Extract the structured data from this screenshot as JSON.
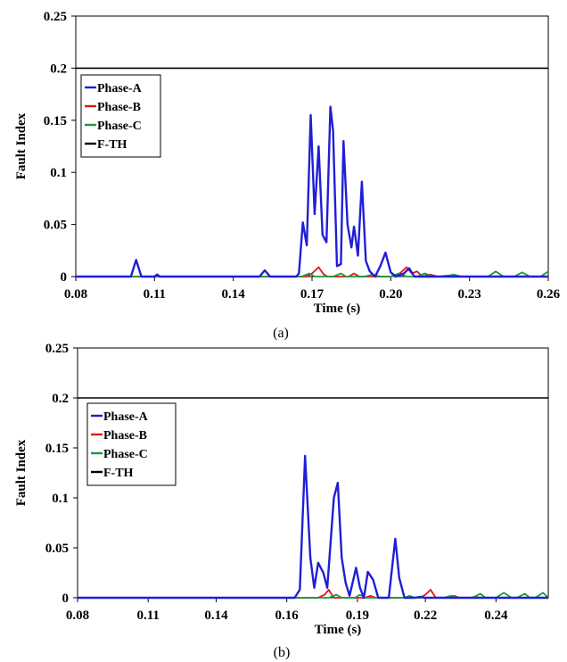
{
  "chart_data": [
    {
      "type": "line",
      "caption": "(a)",
      "xlabel": "Time (s)",
      "ylabel": "Fault Index",
      "xlim": [
        0.08,
        0.26
      ],
      "ylim": [
        0,
        0.25
      ],
      "xticks": [
        "0.08",
        "0.11",
        "0.14",
        "0.17",
        "0.20",
        "0.23",
        "0.26"
      ],
      "xtick_values": [
        0.08,
        0.11,
        0.14,
        0.17,
        0.2,
        0.23,
        0.26
      ],
      "yticks": [
        "0",
        "0.05",
        "0.1",
        "0.15",
        "0.2",
        "0.25"
      ],
      "ytick_values": [
        0,
        0.05,
        0.1,
        0.15,
        0.2,
        0.25
      ],
      "legend_position": "top-left",
      "series": [
        {
          "name": "Phase-A",
          "color": "#1f1fd6",
          "points": [
            [
              0.08,
              0
            ],
            [
              0.101,
              0
            ],
            [
              0.103,
              0.016
            ],
            [
              0.105,
              0
            ],
            [
              0.11,
              0
            ],
            [
              0.111,
              0.002
            ],
            [
              0.112,
              0
            ],
            [
              0.15,
              0
            ],
            [
              0.152,
              0.006
            ],
            [
              0.154,
              0
            ],
            [
              0.164,
              0
            ],
            [
              0.165,
              0.003
            ],
            [
              0.1665,
              0.052
            ],
            [
              0.168,
              0.03
            ],
            [
              0.1695,
              0.155
            ],
            [
              0.171,
              0.06
            ],
            [
              0.1725,
              0.125
            ],
            [
              0.174,
              0.04
            ],
            [
              0.1755,
              0.033
            ],
            [
              0.177,
              0.163
            ],
            [
              0.178,
              0.14
            ],
            [
              0.1795,
              0.01
            ],
            [
              0.181,
              0.012
            ],
            [
              0.182,
              0.13
            ],
            [
              0.1835,
              0.05
            ],
            [
              0.185,
              0.028
            ],
            [
              0.186,
              0.048
            ],
            [
              0.1875,
              0.02
            ],
            [
              0.189,
              0.091
            ],
            [
              0.1905,
              0.015
            ],
            [
              0.192,
              0.005
            ],
            [
              0.194,
              0
            ],
            [
              0.196,
              0.01
            ],
            [
              0.198,
              0.023
            ],
            [
              0.2,
              0.004
            ],
            [
              0.202,
              0
            ],
            [
              0.205,
              0.003
            ],
            [
              0.207,
              0.008
            ],
            [
              0.209,
              0
            ],
            [
              0.26,
              0
            ]
          ]
        },
        {
          "name": "Phase-B",
          "color": "#e01515",
          "points": [
            [
              0.08,
              0
            ],
            [
              0.168,
              0
            ],
            [
              0.17,
              0.003
            ],
            [
              0.1725,
              0.009
            ],
            [
              0.1745,
              0.002
            ],
            [
              0.176,
              0
            ],
            [
              0.184,
              0
            ],
            [
              0.186,
              0.003
            ],
            [
              0.188,
              0
            ],
            [
              0.2,
              0
            ],
            [
              0.203,
              0.002
            ],
            [
              0.206,
              0.009
            ],
            [
              0.208,
              0.003
            ],
            [
              0.21,
              0.005
            ],
            [
              0.212,
              0
            ],
            [
              0.215,
              0.002
            ],
            [
              0.218,
              0
            ],
            [
              0.222,
              0.001
            ],
            [
              0.225,
              0
            ],
            [
              0.26,
              0
            ]
          ]
        },
        {
          "name": "Phase-C",
          "color": "#1a9a3a",
          "points": [
            [
              0.08,
              0
            ],
            [
              0.166,
              0
            ],
            [
              0.169,
              0.003
            ],
            [
              0.171,
              0
            ],
            [
              0.178,
              0
            ],
            [
              0.181,
              0.003
            ],
            [
              0.183,
              0
            ],
            [
              0.19,
              0
            ],
            [
              0.193,
              0.002
            ],
            [
              0.196,
              0
            ],
            [
              0.2,
              0
            ],
            [
              0.203,
              0.003
            ],
            [
              0.206,
              0
            ],
            [
              0.21,
              0
            ],
            [
              0.213,
              0.003
            ],
            [
              0.216,
              0
            ],
            [
              0.22,
              0
            ],
            [
              0.224,
              0.002
            ],
            [
              0.227,
              0
            ],
            [
              0.237,
              0
            ],
            [
              0.24,
              0.005
            ],
            [
              0.243,
              0
            ],
            [
              0.247,
              0
            ],
            [
              0.25,
              0.004
            ],
            [
              0.253,
              0
            ],
            [
              0.257,
              0
            ],
            [
              0.26,
              0.005
            ]
          ]
        },
        {
          "name": "F-TH",
          "color": "#000000",
          "points": [
            [
              0.08,
              0.2
            ],
            [
              0.26,
              0.2
            ]
          ]
        }
      ]
    },
    {
      "type": "line",
      "caption": "(b)",
      "xlabel": "Time (s)",
      "ylabel": "Fault Index",
      "xlim": [
        0.08,
        0.26
      ],
      "ylim": [
        0,
        0.25
      ],
      "xticks": [
        "0.08",
        "0.11",
        "0.14",
        "0.16",
        "0.19",
        "0.22",
        "0.24"
      ],
      "xtick_values": [
        0.08,
        0.107,
        0.133,
        0.16,
        0.187,
        0.213,
        0.24
      ],
      "yticks": [
        "0",
        "0.05",
        "0.1",
        "0.15",
        "0.2",
        "0.25"
      ],
      "ytick_values": [
        0,
        0.05,
        0.1,
        0.15,
        0.2,
        0.25
      ],
      "legend_position": "top-left",
      "series": [
        {
          "name": "Phase-A",
          "color": "#1f1fd6",
          "points": [
            [
              0.08,
              0
            ],
            [
              0.163,
              0
            ],
            [
              0.165,
              0.008
            ],
            [
              0.167,
              0.142
            ],
            [
              0.169,
              0.04
            ],
            [
              0.1705,
              0.01
            ],
            [
              0.172,
              0.035
            ],
            [
              0.174,
              0.025
            ],
            [
              0.1755,
              0.01
            ],
            [
              0.178,
              0.1
            ],
            [
              0.1795,
              0.115
            ],
            [
              0.181,
              0.04
            ],
            [
              0.1825,
              0.015
            ],
            [
              0.184,
              0.002
            ],
            [
              0.1865,
              0.03
            ],
            [
              0.188,
              0.01
            ],
            [
              0.1895,
              0.0
            ],
            [
              0.191,
              0.026
            ],
            [
              0.193,
              0.018
            ],
            [
              0.195,
              0
            ],
            [
              0.199,
              0
            ],
            [
              0.2015,
              0.059
            ],
            [
              0.203,
              0.02
            ],
            [
              0.205,
              0
            ],
            [
              0.209,
              0
            ],
            [
              0.211,
              0.001
            ],
            [
              0.213,
              0
            ],
            [
              0.26,
              0
            ]
          ]
        },
        {
          "name": "Phase-B",
          "color": "#e01515",
          "points": [
            [
              0.08,
              0
            ],
            [
              0.172,
              0
            ],
            [
              0.1745,
              0.003
            ],
            [
              0.176,
              0.008
            ],
            [
              0.178,
              0
            ],
            [
              0.19,
              0
            ],
            [
              0.192,
              0.002
            ],
            [
              0.194,
              0
            ],
            [
              0.211,
              0
            ],
            [
              0.213,
              0.003
            ],
            [
              0.215,
              0.008
            ],
            [
              0.217,
              0
            ],
            [
              0.222,
              0
            ],
            [
              0.224,
              0.002
            ],
            [
              0.226,
              0
            ],
            [
              0.23,
              0
            ],
            [
              0.232,
              0.001
            ],
            [
              0.234,
              0
            ],
            [
              0.26,
              0
            ]
          ]
        },
        {
          "name": "Phase-C",
          "color": "#1a9a3a",
          "points": [
            [
              0.08,
              0
            ],
            [
              0.176,
              0
            ],
            [
              0.179,
              0.003
            ],
            [
              0.181,
              0
            ],
            [
              0.186,
              0
            ],
            [
              0.188,
              0.003
            ],
            [
              0.19,
              0
            ],
            [
              0.205,
              0
            ],
            [
              0.207,
              0.002
            ],
            [
              0.209,
              0
            ],
            [
              0.22,
              0
            ],
            [
              0.223,
              0.002
            ],
            [
              0.225,
              0
            ],
            [
              0.231,
              0
            ],
            [
              0.234,
              0.004
            ],
            [
              0.236,
              0
            ],
            [
              0.24,
              0
            ],
            [
              0.243,
              0.005
            ],
            [
              0.246,
              0
            ],
            [
              0.248,
              0
            ],
            [
              0.251,
              0.004
            ],
            [
              0.253,
              0
            ],
            [
              0.255,
              0
            ],
            [
              0.258,
              0.005
            ],
            [
              0.26,
              0
            ]
          ]
        },
        {
          "name": "F-TH",
          "color": "#000000",
          "points": [
            [
              0.08,
              0.2
            ],
            [
              0.26,
              0.2
            ]
          ]
        }
      ]
    }
  ]
}
